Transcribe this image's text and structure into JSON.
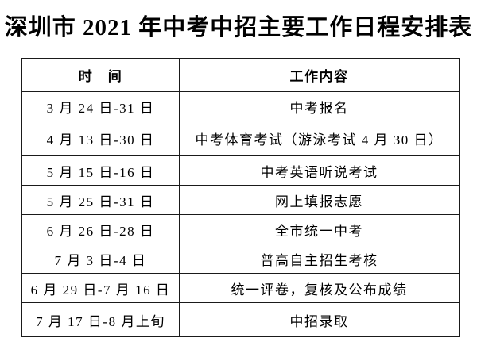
{
  "title": "深圳市 2021 年中考中招主要工作日程安排表",
  "colors": {
    "background": "#ffffff",
    "text": "#000000",
    "border": "#1a1a1a"
  },
  "table": {
    "headers": {
      "time": "时　间",
      "content": "工作内容"
    },
    "rows": [
      {
        "time": "3 月 24 日-31 日",
        "content": "中考报名"
      },
      {
        "time": "4 月 13 日-30 日",
        "content": "中考体育考试（游泳考试 4 月 30 日）"
      },
      {
        "time": "5 月 15 日-16 日",
        "content": "中考英语听说考试"
      },
      {
        "time": "5 月 25 日-31 日",
        "content": "网上填报志愿"
      },
      {
        "time": "6 月 26 日-28 日",
        "content": "全市统一中考"
      },
      {
        "time": "7 月 3 日-4 日",
        "content": "普高自主招生考核"
      },
      {
        "time": "6 月 29 日-7 月 16 日",
        "content": "统一评卷，复核及公布成绩"
      },
      {
        "time": "7 月 17 日-8 月上旬",
        "content": "中招录取"
      }
    ]
  }
}
